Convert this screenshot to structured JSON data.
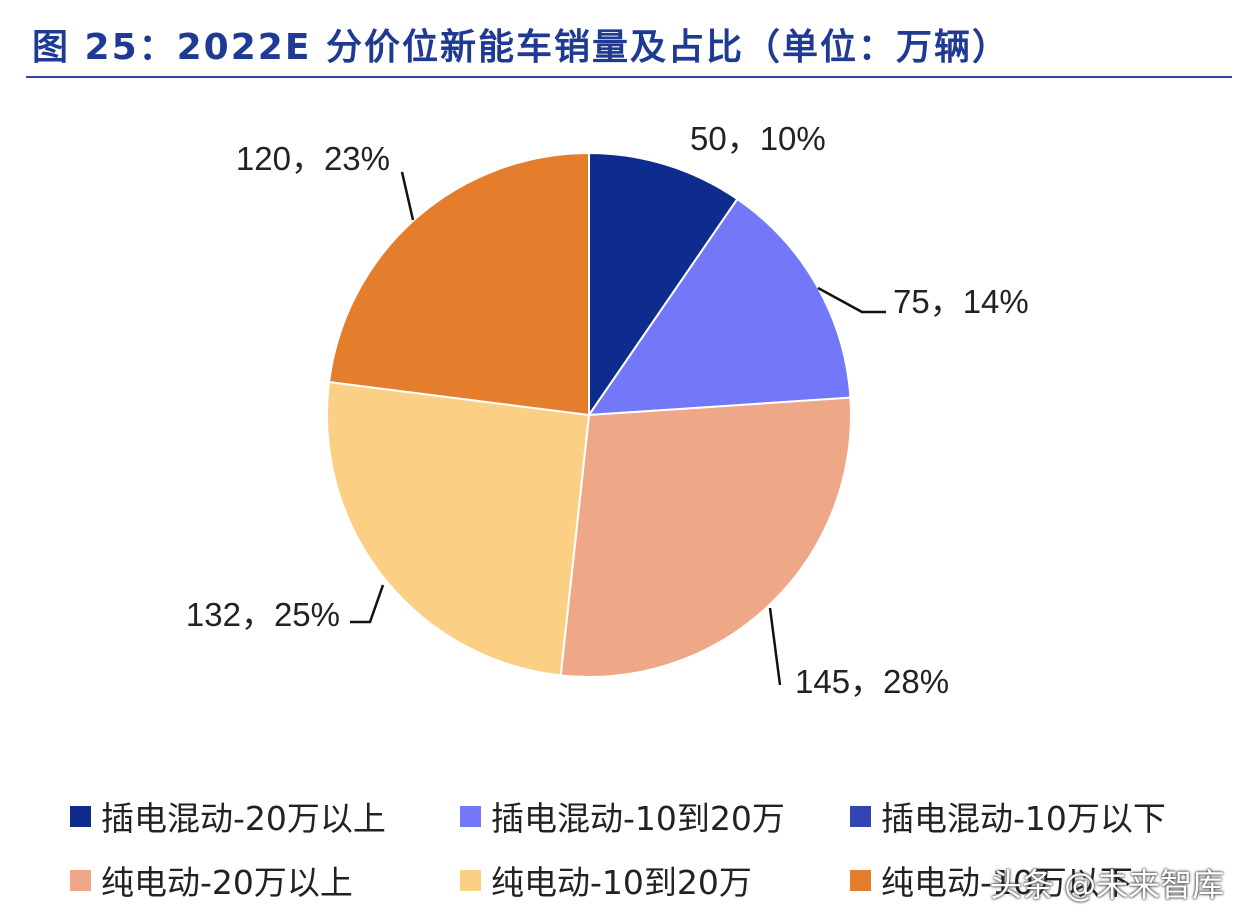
{
  "title": "图 25：2022E 分价位新能车销量及占比（单位：万辆）",
  "watermark": "头条 @未来智库",
  "chart_data": {
    "type": "pie",
    "title": "图 25：2022E 分价位新能车销量及占比（单位：万辆）",
    "unit": "万辆",
    "start_angle_deg": 0,
    "direction": "clockwise",
    "legend_position": "bottom",
    "slices": [
      {
        "name": "插电混动-20万以上",
        "value": 50,
        "percent": "10%",
        "label": "50，10%",
        "color": "#0e2c8e"
      },
      {
        "name": "插电混动-10到20万",
        "value": 75,
        "percent": "14%",
        "label": "75，14%",
        "color": "#7378f8"
      },
      {
        "name": "插电混动-10万以下",
        "value": 0,
        "percent": "",
        "label": "",
        "color": "#3344b5"
      },
      {
        "name": "纯电动-20万以上",
        "value": 145,
        "percent": "28%",
        "label": "145，28%",
        "color": "#eea787"
      },
      {
        "name": "纯电动-10到20万",
        "value": 132,
        "percent": "25%",
        "label": "132，25%",
        "color": "#fbd084"
      },
      {
        "name": "纯电动-10万以下",
        "value": 120,
        "percent": "23%",
        "label": "120，23%",
        "color": "#e57e2c"
      }
    ]
  },
  "legend": [
    {
      "label": "插电混动-20万以上",
      "color": "#0e2c8e"
    },
    {
      "label": "插电混动-10到20万",
      "color": "#7378f8"
    },
    {
      "label": "插电混动-10万以下",
      "color": "#3344b5"
    },
    {
      "label": "纯电动-20万以上",
      "color": "#eea787"
    },
    {
      "label": "纯电动-10到20万",
      "color": "#fbd084"
    },
    {
      "label": "纯电动-10万以下",
      "color": "#e57e2c"
    }
  ]
}
